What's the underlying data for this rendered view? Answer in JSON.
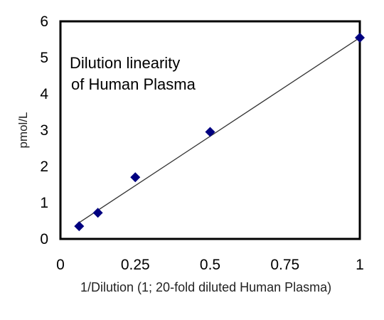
{
  "chart_data": {
    "type": "scatter",
    "title_lines": [
      "Dilution linearity",
      "of  Human Plasma"
    ],
    "xlabel": "1/Dilution (1; 20-fold diluted Human Plasma)",
    "ylabel": "pmol/L",
    "xlim": [
      0,
      1
    ],
    "ylim": [
      0,
      6
    ],
    "xticks": [
      "0",
      "0.25",
      "0.5",
      "0.75",
      "1"
    ],
    "yticks": [
      "0",
      "1",
      "2",
      "3",
      "4",
      "5",
      "6"
    ],
    "grid": false,
    "series": [
      {
        "marker": "diamond",
        "color": "#000080",
        "x": [
          0.0625,
          0.125,
          0.25,
          0.5,
          1.0
        ],
        "y": [
          0.35,
          0.72,
          1.7,
          2.95,
          5.55
        ]
      }
    ],
    "trendline": {
      "type": "linear",
      "color": "#333333",
      "x": [
        0.0625,
        1.0
      ],
      "y": [
        0.45,
        5.55
      ]
    }
  }
}
